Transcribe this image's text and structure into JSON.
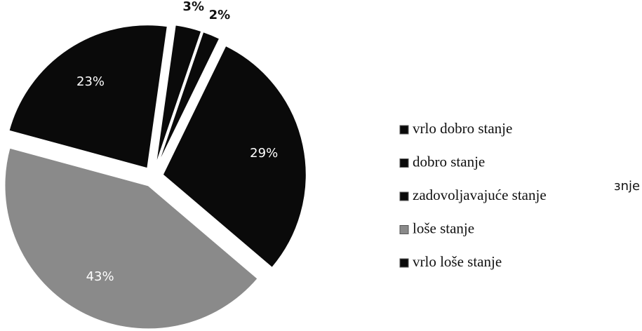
{
  "chart_data": {
    "type": "pie",
    "categories": [
      "vrlo dobro stanje",
      "dobro stanje",
      "zadovoljavajuće stanje",
      "loše stanje",
      "vrlo loše stanje"
    ],
    "values": [
      3,
      2,
      29,
      43,
      23
    ],
    "value_labels": [
      "3%",
      "2%",
      "29%",
      "43%",
      "23%"
    ],
    "colors": [
      "#0a0a0a",
      "#0a0a0a",
      "#0a0a0a",
      "#8a8a8a",
      "#0a0a0a"
    ],
    "legend": "right",
    "annotation": "ɜnje"
  }
}
